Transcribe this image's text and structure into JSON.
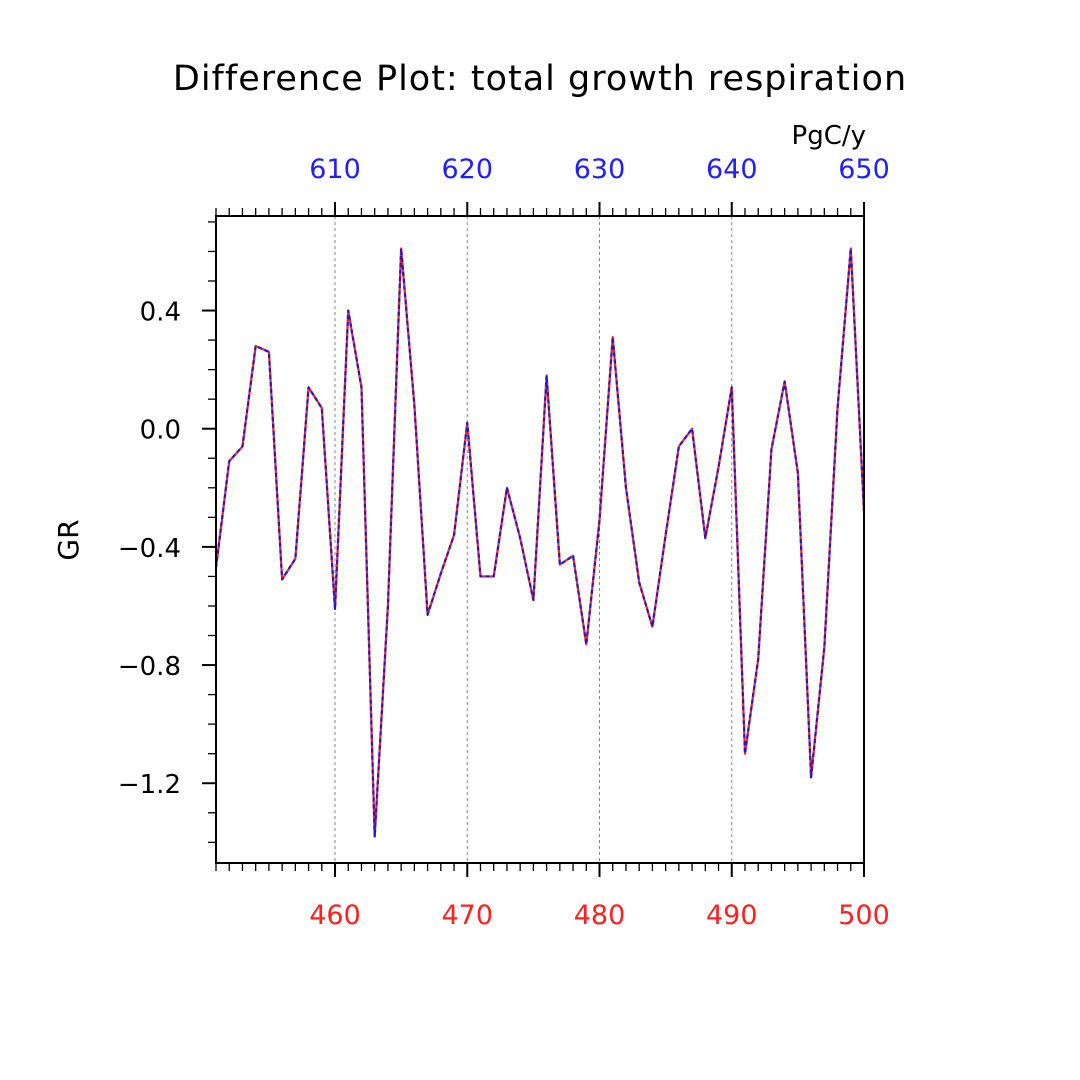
{
  "chart_data": {
    "type": "line",
    "title": "Difference Plot: total growth respiration",
    "units": "PgC/y",
    "ylabel": "GR",
    "xlim_bottom": [
      451,
      500
    ],
    "xlim_top": [
      601,
      650
    ],
    "ylim": [
      -1.47,
      0.72
    ],
    "xticks_bottom": [
      "460",
      "470",
      "480",
      "490",
      "500"
    ],
    "xticks_top": [
      "610",
      "620",
      "630",
      "640",
      "650"
    ],
    "yticks": [
      "0.4",
      "0.0",
      "−0.4",
      "−0.8",
      "−1.2"
    ],
    "ytick_values": [
      0.4,
      0.0,
      -0.4,
      -0.8,
      -1.2
    ],
    "colors": {
      "bottom_axis": "#ff2020",
      "top_axis": "#2020ff",
      "series_red": "#ff2020",
      "series_blue": "#1a1ad6",
      "grid": "#888888"
    },
    "grid": "vertical dashed",
    "series": [
      {
        "x": [
          451,
          452,
          453,
          454,
          455,
          456,
          457,
          458,
          459,
          460,
          461,
          462,
          463,
          464,
          465,
          466,
          467,
          468,
          469,
          470,
          471,
          472,
          473,
          474,
          475,
          476,
          477,
          478,
          479,
          480,
          481,
          482,
          483,
          484,
          485,
          486,
          487,
          488,
          489,
          490,
          491,
          492,
          493,
          494,
          495,
          496,
          497,
          498,
          499,
          500
        ],
        "values": [
          -0.47,
          -0.11,
          -0.06,
          0.28,
          0.26,
          -0.51,
          -0.44,
          0.14,
          0.07,
          -0.61,
          0.4,
          0.14,
          -1.38,
          -0.6,
          0.61,
          0.08,
          -0.63,
          -0.49,
          -0.36,
          0.02,
          -0.5,
          -0.5,
          -0.2,
          -0.37,
          -0.58,
          0.18,
          -0.46,
          -0.43,
          -0.73,
          -0.31,
          0.31,
          -0.2,
          -0.52,
          -0.67,
          -0.36,
          -0.06,
          0.0,
          -0.37,
          -0.13,
          0.14,
          -1.1,
          -0.78,
          -0.07,
          0.16,
          -0.15,
          -1.18,
          -0.74,
          0.07,
          0.61,
          -0.28
        ]
      }
    ]
  }
}
